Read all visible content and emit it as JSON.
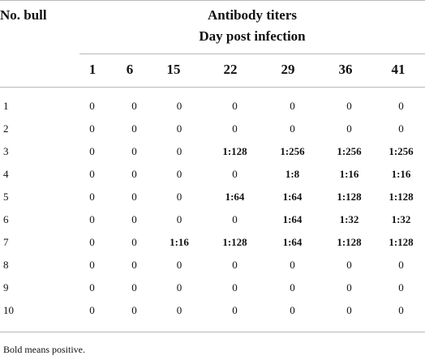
{
  "header": {
    "bull_column": "No. bull",
    "group_title": "Antibody titers",
    "group_subtitle": "Day post infection",
    "days": [
      "1",
      "6",
      "15",
      "22",
      "29",
      "36",
      "41"
    ]
  },
  "rows": [
    {
      "bull": "1",
      "values": [
        "0",
        "0",
        "0",
        "0",
        "0",
        "0",
        "0"
      ],
      "positive": [
        false,
        false,
        false,
        false,
        false,
        false,
        false
      ]
    },
    {
      "bull": "2",
      "values": [
        "0",
        "0",
        "0",
        "0",
        "0",
        "0",
        "0"
      ],
      "positive": [
        false,
        false,
        false,
        false,
        false,
        false,
        false
      ]
    },
    {
      "bull": "3",
      "values": [
        "0",
        "0",
        "0",
        "1:128",
        "1:256",
        "1:256",
        "1:256"
      ],
      "positive": [
        false,
        false,
        false,
        true,
        true,
        true,
        true
      ]
    },
    {
      "bull": "4",
      "values": [
        "0",
        "0",
        "0",
        "0",
        "1:8",
        "1:16",
        "1:16"
      ],
      "positive": [
        false,
        false,
        false,
        false,
        true,
        true,
        true
      ]
    },
    {
      "bull": "5",
      "values": [
        "0",
        "0",
        "0",
        "1:64",
        "1:64",
        "1:128",
        "1:128"
      ],
      "positive": [
        false,
        false,
        false,
        true,
        true,
        true,
        true
      ]
    },
    {
      "bull": "6",
      "values": [
        "0",
        "0",
        "0",
        "0",
        "1:64",
        "1:32",
        "1:32"
      ],
      "positive": [
        false,
        false,
        false,
        false,
        true,
        true,
        true
      ]
    },
    {
      "bull": "7",
      "values": [
        "0",
        "0",
        "1:16",
        "1:128",
        "1:64",
        "1:128",
        "1:128"
      ],
      "positive": [
        false,
        false,
        true,
        true,
        true,
        true,
        true
      ]
    },
    {
      "bull": "8",
      "values": [
        "0",
        "0",
        "0",
        "0",
        "0",
        "0",
        "0"
      ],
      "positive": [
        false,
        false,
        false,
        false,
        false,
        false,
        false
      ]
    },
    {
      "bull": "9",
      "values": [
        "0",
        "0",
        "0",
        "0",
        "0",
        "0",
        "0"
      ],
      "positive": [
        false,
        false,
        false,
        false,
        false,
        false,
        false
      ]
    },
    {
      "bull": "10",
      "values": [
        "0",
        "0",
        "0",
        "0",
        "0",
        "0",
        "0"
      ],
      "positive": [
        false,
        false,
        false,
        false,
        false,
        false,
        false
      ]
    }
  ],
  "footnote": "Bold means positive."
}
